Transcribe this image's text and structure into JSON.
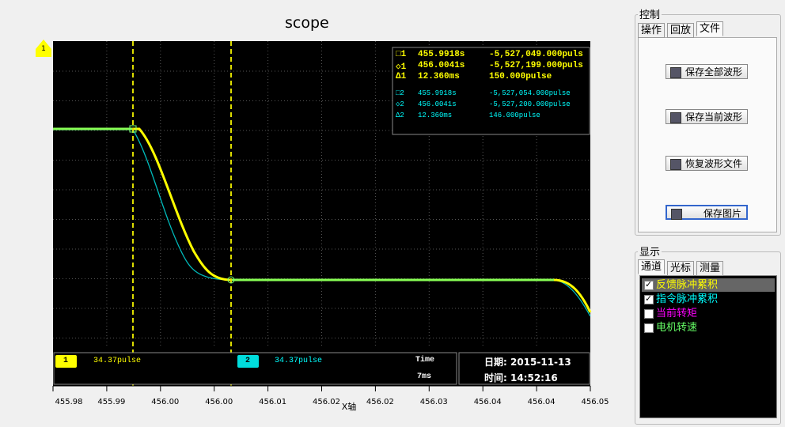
{
  "window": {
    "title": "scope",
    "channel_marker": "1",
    "cursor_info": {
      "ch1": [
        [
          "□1",
          "455.9918s",
          "-5,527,049.000puls"
        ],
        [
          "◇1",
          "456.0041s",
          "-5,527,199.000puls"
        ],
        [
          "Δ1",
          "12.360ms",
          "150.000pulse"
        ]
      ],
      "ch2": [
        [
          "□2",
          "455.9918s",
          "-5,527,054.000pulse"
        ],
        [
          "◇2",
          "456.0041s",
          "-5,527,200.000pulse"
        ],
        [
          "Δ2",
          "12.360ms",
          "146.000pulse"
        ]
      ]
    },
    "status_bar": {
      "ch1_badge": "1",
      "ch1_value": "34.37pulse",
      "ch2_badge": "2",
      "ch2_value": "34.37pulse",
      "time_label": "Time",
      "time_value": "7ms",
      "date": "日期: 2015-11-13",
      "time": "时间:  14:52:16"
    },
    "x_ticks": [
      "455.98",
      "455.99",
      "456.00",
      "456.00",
      "456.01",
      "456.02",
      "456.02",
      "456.03",
      "456.04",
      "456.04",
      "456.05"
    ],
    "x_axis_label": "X轴"
  },
  "control_panel": {
    "title": "控制",
    "tabs": [
      "操作",
      "回放",
      "文件"
    ],
    "buttons": [
      "保存全部波形",
      "保存当前波形",
      "恢复波形文件",
      "保存图片"
    ]
  },
  "display_panel": {
    "title": "显示",
    "tabs": [
      "通道",
      "光标",
      "测量"
    ],
    "channels": [
      "反馈脉冲累积",
      "指令脉冲累积",
      "当前转矩",
      "电机转速"
    ]
  }
}
